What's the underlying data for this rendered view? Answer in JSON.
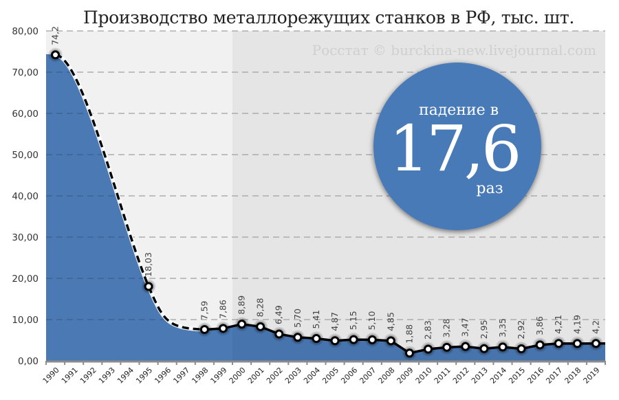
{
  "chart_data": {
    "type": "area",
    "title": "Производство металлорежущих станков в РФ, тыс. шт.",
    "watermark": "Росстат © burckina-new.livejournal.com",
    "xlabel": "",
    "ylabel": "",
    "ylim": [
      0,
      80
    ],
    "yticks": [
      "0,00",
      "10,00",
      "20,00",
      "30,00",
      "40,00",
      "50,00",
      "60,00",
      "70,00",
      "80,00"
    ],
    "grid": true,
    "legend": "none",
    "categories": [
      "1990",
      "1991",
      "1992",
      "1993",
      "1994",
      "1995",
      "1996",
      "1997",
      "1998",
      "1999",
      "2000",
      "2001",
      "2002",
      "2003",
      "2004",
      "2005",
      "2006",
      "2007",
      "2008",
      "2009",
      "2010",
      "2011",
      "2012",
      "2013",
      "2014",
      "2015",
      "2016",
      "2017",
      "2018",
      "2019"
    ],
    "series": [
      {
        "name": "Производство, тыс. шт.",
        "points": [
          {
            "x": "1990",
            "y": 74.2,
            "label": "74,2"
          },
          {
            "x": "1995",
            "y": 18.03,
            "label": "18,03"
          },
          {
            "x": "1998",
            "y": 7.59,
            "label": "7,59"
          },
          {
            "x": "1999",
            "y": 7.86,
            "label": "7,86"
          },
          {
            "x": "2000",
            "y": 8.89,
            "label": "8,89"
          },
          {
            "x": "2001",
            "y": 8.28,
            "label": "8,28"
          },
          {
            "x": "2002",
            "y": 6.49,
            "label": "6,49"
          },
          {
            "x": "2003",
            "y": 5.7,
            "label": "5,70"
          },
          {
            "x": "2004",
            "y": 5.41,
            "label": "5,41"
          },
          {
            "x": "2005",
            "y": 4.87,
            "label": "4,87"
          },
          {
            "x": "2006",
            "y": 5.15,
            "label": "5,15"
          },
          {
            "x": "2007",
            "y": 5.1,
            "label": "5,10"
          },
          {
            "x": "2008",
            "y": 4.85,
            "label": "4,85"
          },
          {
            "x": "2009",
            "y": 1.88,
            "label": "1,88"
          },
          {
            "x": "2010",
            "y": 2.83,
            "label": "2,83"
          },
          {
            "x": "2011",
            "y": 3.28,
            "label": "3,28"
          },
          {
            "x": "2012",
            "y": 3.47,
            "label": "3,47"
          },
          {
            "x": "2013",
            "y": 2.95,
            "label": "2,95"
          },
          {
            "x": "2014",
            "y": 3.35,
            "label": "3,35"
          },
          {
            "x": "2015",
            "y": 2.92,
            "label": "2,92"
          },
          {
            "x": "2016",
            "y": 3.86,
            "label": "3,86"
          },
          {
            "x": "2017",
            "y": 4.21,
            "label": "4,21"
          },
          {
            "x": "2018",
            "y": 4.19,
            "label": "4,19"
          },
          {
            "x": "2019",
            "y": 4.2,
            "label": "4,2"
          }
        ],
        "interpolated_segment": {
          "from": "1990",
          "to": "1998",
          "style": "dashed-smooth"
        }
      }
    ],
    "annotations": [
      {
        "type": "badge",
        "line1": "падение в",
        "value": "17,6",
        "unit": "раз"
      }
    ],
    "background_regions": [
      {
        "from": "1990",
        "to": "1999",
        "color": "#f1f1f1"
      },
      {
        "from": "2000",
        "to": "2019",
        "color": "#e5e5e5"
      }
    ],
    "colors": {
      "area": "#4a79b3",
      "line": "#000000",
      "badge": "#4a7ab8"
    }
  }
}
